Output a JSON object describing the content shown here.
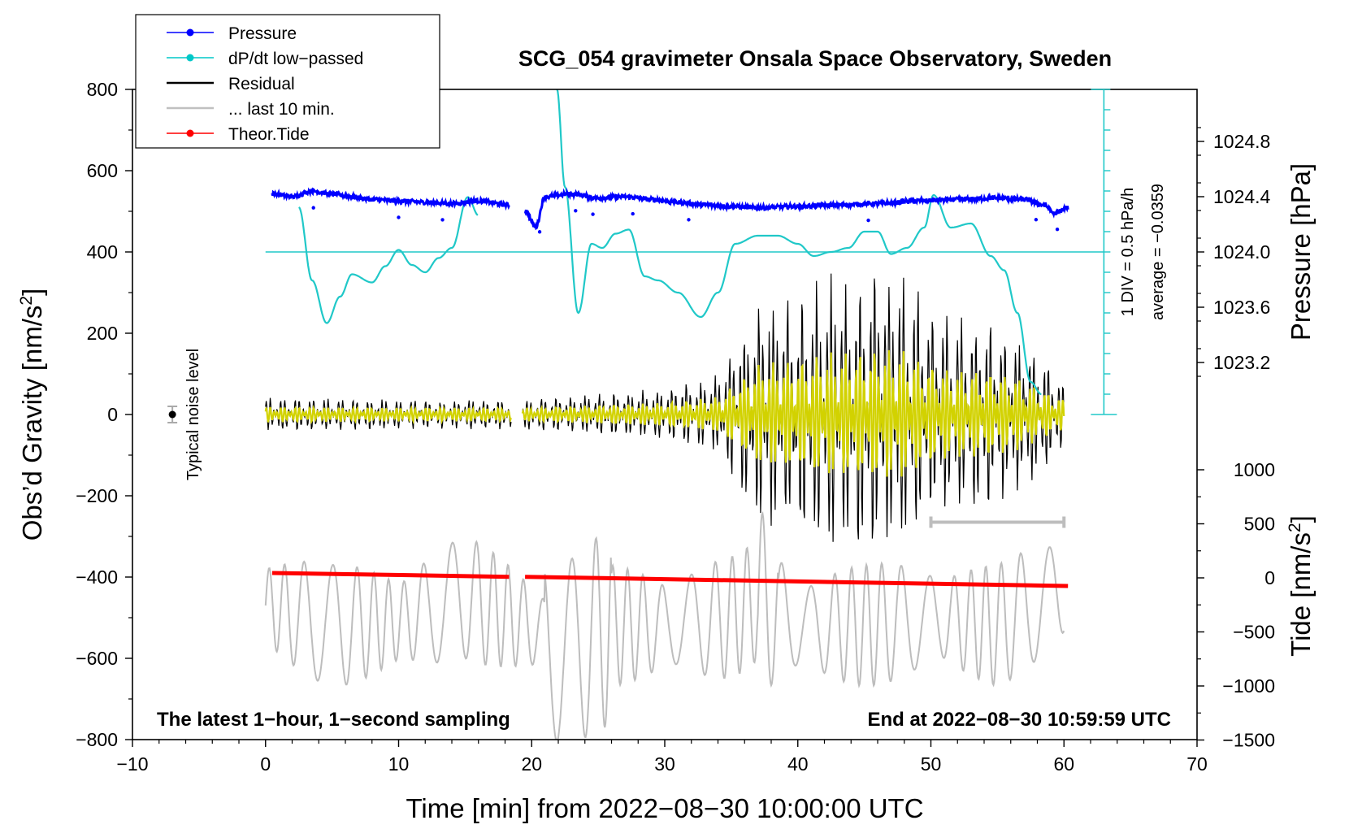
{
  "chart_data": {
    "type": "line",
    "title": "SCG_054 gravimeter Onsala Space Observatory, Sweden",
    "xlabel": "Time [min] from 2022−08−30 10:00:00 UTC",
    "ylabel_left_main": "Obs’d Gravity [nm/s",
    "ylabel_left_sup": "2",
    "ylabel_left_end": "]",
    "ylabel_right_top": "Pressure [hPa]",
    "ylabel_right_bottom_main": "Tide [nm/s",
    "ylabel_right_bottom_sup": "2",
    "ylabel_right_bottom_end": "]",
    "xlim": [
      -10,
      70
    ],
    "ylim": [
      -800,
      800
    ],
    "x_ticks": [
      "−10",
      "0",
      "10",
      "20",
      "30",
      "40",
      "50",
      "60",
      "70"
    ],
    "x_tick_values": [
      -10,
      0,
      10,
      20,
      30,
      40,
      50,
      60,
      70
    ],
    "y_ticks": [
      "800",
      "600",
      "400",
      "200",
      "0",
      "−200",
      "−400",
      "−600",
      "−800"
    ],
    "y_tick_values": [
      800,
      600,
      400,
      200,
      0,
      -200,
      -400,
      -600,
      -800
    ],
    "pressure_axis": {
      "ticks": [
        "1024.8",
        "1024.4",
        "1024.0",
        "1023.6",
        "1023.2"
      ],
      "values": [
        1024.8,
        1024.4,
        1024.0,
        1023.6,
        1023.2
      ],
      "range": [
        1023.0,
        1025.0
      ]
    },
    "tide_axis": {
      "ticks": [
        "1000",
        "500",
        "0",
        "−500",
        "−1000",
        "−1500"
      ],
      "values": [
        1000,
        500,
        0,
        -500,
        -1000,
        -1500
      ],
      "range": [
        -1500,
        1000
      ]
    },
    "annotation_left": "The latest 1−hour, 1−second sampling",
    "annotation_right": "End at 2022−08−30 10:59:59 UTC",
    "noise_label": "Typical noise level",
    "noise_marker": {
      "x": -7,
      "y": 0,
      "error": 20
    },
    "dpdt_scale_label": "1 DIV = 0.5 hPa/h",
    "dpdt_average_label": "average = −0.0359",
    "dpdt_baseline_gravity": 400,
    "last10_bar": {
      "x_start": 50,
      "x_end": 60,
      "y": -265
    },
    "legend": [
      {
        "label": "Pressure",
        "color": "#0000ff",
        "marker": true
      },
      {
        "label": "dP/dt low−passed",
        "color": "#00c8c8",
        "marker": true
      },
      {
        "label": "Residual",
        "color": "#000000",
        "marker": false
      },
      {
        "label": "... last 10 min.",
        "color": "#c0c0c0",
        "marker": false
      },
      {
        "label": "Theor.Tide",
        "color": "#ff0000",
        "marker": true
      }
    ],
    "colors": {
      "pressure": "#0000ff",
      "dpdt": "#20c8c8",
      "residual": "#000000",
      "filtered": "#d2d200",
      "last10": "#bdbdbd",
      "tide": "#ff0000"
    },
    "gap_minutes": [
      18.5,
      19.3
    ],
    "series": [
      {
        "name": "Pressure [hPa]",
        "axis": "pressure",
        "x": [
          0.5,
          2,
          3.5,
          5,
          6.5,
          8,
          10,
          12,
          14,
          16,
          18.3,
          19.5,
          20.3,
          21,
          23,
          25,
          27,
          29,
          31,
          33,
          35,
          37,
          40,
          43,
          46,
          49,
          52,
          55,
          57,
          58.5,
          59.3,
          60.3
        ],
        "y": [
          1024.42,
          1024.4,
          1024.44,
          1024.42,
          1024.4,
          1024.38,
          1024.37,
          1024.36,
          1024.35,
          1024.37,
          1024.34,
          1024.3,
          1024.18,
          1024.4,
          1024.42,
          1024.39,
          1024.4,
          1024.38,
          1024.36,
          1024.34,
          1024.33,
          1024.32,
          1024.33,
          1024.34,
          1024.35,
          1024.37,
          1024.38,
          1024.39,
          1024.38,
          1024.34,
          1024.28,
          1024.32
        ]
      },
      {
        "name": "dP/dt low−passed (gravity-axis units)",
        "axis": "gravity",
        "x": [
          2.5,
          3.5,
          4.6,
          5.6,
          6.5,
          8,
          9,
          10,
          11,
          12,
          13,
          14,
          15.2,
          16,
          21.9,
          22.5,
          23.5,
          24.5,
          25.3,
          26.3,
          27.3,
          28.5,
          29.5,
          31,
          32.7,
          34,
          35.3,
          37,
          38.5,
          40,
          41.2,
          42.5,
          43.8,
          45,
          46,
          47,
          48.2,
          49.5,
          50.2,
          51.5,
          53,
          54.5,
          55.5,
          56.5,
          57.5,
          58.3
        ],
        "y": [
          510,
          330,
          225,
          290,
          345,
          325,
          365,
          405,
          368,
          350,
          385,
          410,
          535,
          490,
          800,
          560,
          250,
          420,
          410,
          445,
          455,
          340,
          330,
          300,
          240,
          300,
          420,
          440,
          440,
          420,
          390,
          400,
          410,
          450,
          450,
          395,
          410,
          460,
          540,
          460,
          470,
          390,
          355,
          250,
          80,
          50
        ]
      },
      {
        "name": "Theor.Tide [nm/s²]",
        "axis": "tide",
        "x": [
          0.5,
          18.3,
          19.5,
          60.3
        ],
        "y": [
          45,
          10,
          10,
          -75
        ]
      },
      {
        "name": "Residual envelope [nm/s²]",
        "axis": "gravity",
        "x": [
          0,
          10,
          20,
          30,
          34,
          37,
          40,
          42,
          44,
          46,
          48,
          50,
          52,
          54,
          56,
          58,
          60
        ],
        "y": [
          40,
          35,
          35,
          60,
          90,
          260,
          280,
          320,
          320,
          340,
          330,
          260,
          220,
          230,
          200,
          140,
          80
        ]
      },
      {
        "name": "Last 10 min. (shifted overlay)",
        "axis": "gravity",
        "x": [
          0,
          5,
          10,
          15,
          20,
          22,
          24,
          26,
          30,
          35,
          37.5,
          40,
          45,
          50,
          55,
          60
        ],
        "y": [
          -470,
          -520,
          -510,
          -450,
          -520,
          -600,
          -560,
          -520,
          -520,
          -500,
          -450,
          -520,
          -520,
          -500,
          -520,
          -430
        ]
      }
    ]
  }
}
